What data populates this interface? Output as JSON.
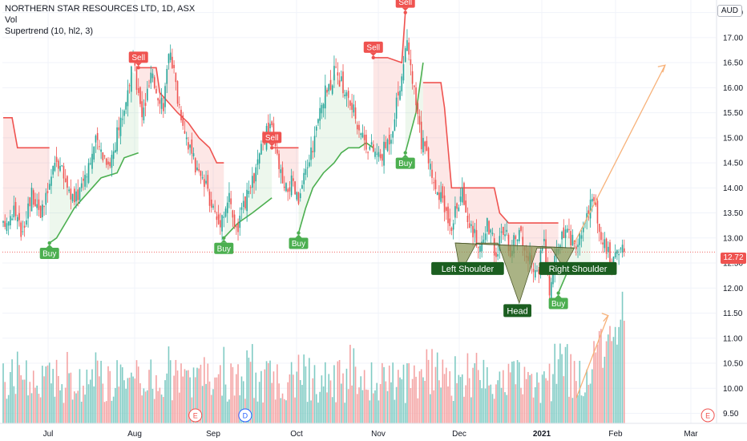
{
  "header": {
    "title": "NORTHERN STAR RESOURCES LTD, 1D, ASX",
    "vol_label": "Vol",
    "supertrend_label": "Supertrend (10, hl2, 3)",
    "currency": "AUD",
    "last_price": "12.72"
  },
  "colors": {
    "up": "#26a69a",
    "down": "#ef5350",
    "vol_up": "#80cbc4",
    "vol_down": "#f4a3a3",
    "trend_up": "#4caf50",
    "trend_down": "#ef5350",
    "fill_up": "rgba(76,175,80,0.10)",
    "fill_down": "rgba(239,83,80,0.14)",
    "pattern_fill": "#8e9a5c",
    "pattern_label_bg": "#1b5e20",
    "projection": "#f7b27a"
  },
  "chart_data": {
    "type": "candlestick",
    "ylim": [
      9.3,
      17.75
    ],
    "y_ticks": [
      "17.50",
      "17.00",
      "16.50",
      "16.00",
      "15.50",
      "15.00",
      "14.50",
      "14.00",
      "13.50",
      "13.00",
      "12.50",
      "12.00",
      "11.50",
      "11.00",
      "10.50",
      "10.00",
      "9.50"
    ],
    "x_ticks": [
      "Jul",
      "Aug",
      "Sep",
      "Oct",
      "Nov",
      "Dec",
      "2021",
      "Feb",
      "Mar"
    ],
    "close_path": [
      [
        0,
        13.2
      ],
      [
        6,
        13.6
      ],
      [
        10,
        13.1
      ],
      [
        16,
        13.9
      ],
      [
        22,
        13.5
      ],
      [
        30,
        14.6
      ],
      [
        40,
        13.7
      ],
      [
        46,
        14.3
      ],
      [
        52,
        14.9
      ],
      [
        60,
        14.5
      ],
      [
        68,
        15.6
      ],
      [
        73,
        16.5
      ],
      [
        78,
        15.4
      ],
      [
        83,
        16.2
      ],
      [
        90,
        15.7
      ],
      [
        94,
        16.8
      ],
      [
        98,
        15.8
      ],
      [
        104,
        14.9
      ],
      [
        108,
        14.4
      ],
      [
        115,
        13.9
      ],
      [
        121,
        13.3
      ],
      [
        127,
        13.8
      ],
      [
        131,
        13.1
      ],
      [
        136,
        13.7
      ],
      [
        141,
        14.2
      ],
      [
        146,
        14.9
      ],
      [
        150,
        15.3
      ],
      [
        154,
        14.6
      ],
      [
        158,
        13.9
      ],
      [
        162,
        14.1
      ],
      [
        166,
        13.7
      ],
      [
        170,
        14.3
      ],
      [
        175,
        15.0
      ],
      [
        180,
        15.8
      ],
      [
        186,
        16.3
      ],
      [
        190,
        16.1
      ],
      [
        196,
        15.6
      ],
      [
        204,
        14.9
      ],
      [
        212,
        14.6
      ],
      [
        218,
        15.1
      ],
      [
        222,
        15.9
      ],
      [
        227,
        16.8
      ],
      [
        231,
        15.9
      ],
      [
        235,
        14.9
      ],
      [
        239,
        14.6
      ],
      [
        244,
        13.9
      ],
      [
        248,
        13.6
      ],
      [
        252,
        13.3
      ],
      [
        258,
        13.9
      ],
      [
        263,
        13.2
      ],
      [
        268,
        12.8
      ],
      [
        272,
        13.3
      ],
      [
        277,
        12.7
      ],
      [
        281,
        13.2
      ],
      [
        285,
        12.8
      ],
      [
        290,
        13.1
      ],
      [
        295,
        12.6
      ],
      [
        300,
        12.3
      ],
      [
        304,
        12.9
      ],
      [
        307,
        11.9
      ],
      [
        311,
        12.7
      ],
      [
        315,
        13.1
      ],
      [
        319,
        13.0
      ],
      [
        323,
        12.8
      ],
      [
        328,
        13.5
      ],
      [
        331,
        13.8
      ],
      [
        335,
        13.2
      ],
      [
        338,
        12.9
      ],
      [
        342,
        12.5
      ],
      [
        345,
        12.9
      ],
      [
        348,
        12.72
      ]
    ],
    "supertrend": [
      {
        "dir": "down",
        "points": [
          [
            0,
            15.4
          ],
          [
            5,
            15.4
          ],
          [
            8,
            14.8
          ],
          [
            26,
            14.8
          ]
        ]
      },
      {
        "dir": "up",
        "points": [
          [
            26,
            12.9
          ],
          [
            30,
            13.0
          ],
          [
            35,
            13.3
          ],
          [
            40,
            13.6
          ],
          [
            45,
            13.8
          ],
          [
            50,
            14.0
          ],
          [
            55,
            14.2
          ],
          [
            64,
            14.3
          ],
          [
            68,
            14.6
          ],
          [
            76,
            14.7
          ]
        ]
      },
      {
        "dir": "down",
        "points": [
          [
            76,
            16.4
          ],
          [
            86,
            16.4
          ],
          [
            88,
            15.9
          ],
          [
            93,
            15.7
          ],
          [
            98,
            15.5
          ],
          [
            104,
            15.3
          ],
          [
            110,
            15.0
          ],
          [
            116,
            14.8
          ],
          [
            120,
            14.5
          ],
          [
            124,
            14.5
          ]
        ]
      },
      {
        "dir": "up",
        "points": [
          [
            124,
            13.0
          ],
          [
            132,
            13.3
          ],
          [
            140,
            13.5
          ],
          [
            151,
            13.8
          ]
        ]
      },
      {
        "dir": "down",
        "points": [
          [
            151,
            14.8
          ],
          [
            160,
            14.8
          ],
          [
            166,
            14.8
          ]
        ]
      },
      {
        "dir": "up",
        "points": [
          [
            166,
            13.1
          ],
          [
            170,
            13.6
          ],
          [
            174,
            14.0
          ],
          [
            180,
            14.3
          ],
          [
            186,
            14.5
          ],
          [
            190,
            14.7
          ],
          [
            194,
            14.8
          ],
          [
            200,
            14.8
          ],
          [
            204,
            14.9
          ],
          [
            208,
            14.8
          ]
        ]
      },
      {
        "dir": "down",
        "points": [
          [
            208,
            16.6
          ],
          [
            216,
            16.6
          ],
          [
            224,
            16.5
          ],
          [
            226,
            17.5
          ]
        ]
      },
      {
        "dir": "up",
        "points": [
          [
            226,
            14.7
          ],
          [
            232,
            15.5
          ],
          [
            236,
            16.5
          ]
        ]
      },
      {
        "dir": "down",
        "points": [
          [
            236,
            16.1
          ],
          [
            246,
            16.1
          ],
          [
            248,
            15.6
          ],
          [
            252,
            14.0
          ],
          [
            276,
            14.0
          ],
          [
            279,
            13.5
          ],
          [
            284,
            13.3
          ],
          [
            300,
            13.3
          ],
          [
            312,
            13.3
          ]
        ]
      },
      {
        "dir": "up",
        "points": [
          [
            312,
            11.9
          ],
          [
            318,
            12.4
          ],
          [
            324,
            12.4
          ],
          [
            330,
            12.4
          ]
        ]
      }
    ],
    "signals": [
      {
        "type": "Buy",
        "t": 26,
        "price": 12.9
      },
      {
        "type": "Sell",
        "t": 76,
        "price": 16.4
      },
      {
        "type": "Buy",
        "t": 124,
        "price": 13.0
      },
      {
        "type": "Sell",
        "t": 151,
        "price": 14.8
      },
      {
        "type": "Buy",
        "t": 166,
        "price": 13.1
      },
      {
        "type": "Sell",
        "t": 208,
        "price": 16.6
      },
      {
        "type": "Sell",
        "t": 226,
        "price": 17.5
      },
      {
        "type": "Buy",
        "t": 226,
        "price": 14.7
      },
      {
        "type": "Buy",
        "t": 312,
        "price": 11.9
      }
    ],
    "annotations": {
      "left_shoulder": "Left Shoulder",
      "head": "Head",
      "right_shoulder": "Right Shoulder"
    },
    "pattern_points": [
      [
        254,
        12.9
      ],
      [
        257,
        12.3
      ],
      [
        266,
        12.9
      ],
      [
        278,
        12.9
      ],
      [
        290,
        11.7
      ],
      [
        300,
        12.8
      ],
      [
        308,
        12.8
      ],
      [
        315,
        12.4
      ],
      [
        321,
        12.8
      ]
    ],
    "projection": [
      [
        321,
        12.9
      ],
      [
        372,
        16.45
      ]
    ],
    "volume_arrow": [
      [
        322,
        9.8
      ],
      [
        340,
        11.45
      ]
    ],
    "events": [
      {
        "label": "E",
        "t": 108,
        "color": "#ef5350"
      },
      {
        "label": "D",
        "t": 136,
        "color": "#2962ff"
      },
      {
        "label": "E",
        "t": 396,
        "color": "#ef5350"
      }
    ]
  }
}
